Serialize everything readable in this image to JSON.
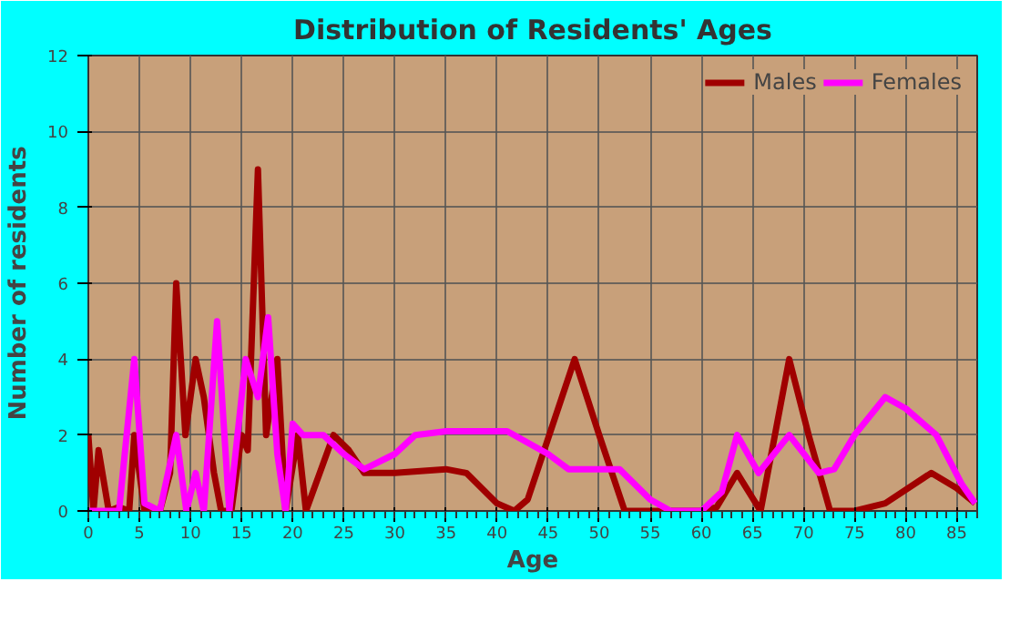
{
  "chart_data": {
    "type": "line",
    "title": "Distribution of Residents' Ages",
    "xlabel": "Age",
    "ylabel": "Number of residents",
    "xlim": [
      0,
      87
    ],
    "xticks": [
      0,
      5,
      10,
      15,
      20,
      25,
      30,
      35,
      40,
      45,
      50,
      55,
      60,
      65,
      70,
      75,
      80,
      85
    ],
    "ylim": [
      0,
      12
    ],
    "yticks": [
      0,
      2,
      4,
      6,
      8,
      10,
      12
    ],
    "grid": true,
    "legend": "top right",
    "line_style": "solid",
    "series": [
      {
        "name": "Males",
        "color": "#a00000",
        "x": [
          0,
          0.5,
          1,
          2,
          3,
          4,
          4.5,
          5.5,
          7,
          8,
          8.6,
          9.5,
          10.5,
          11.3,
          12.3,
          13,
          14,
          15,
          15.6,
          16.6,
          17.4,
          18.5,
          19.3,
          20.5,
          21.3,
          24,
          25.5,
          27,
          30,
          35,
          37,
          40,
          41.7,
          43,
          47.6,
          50,
          52.5,
          55,
          60,
          61.5,
          63.5,
          65.8,
          68.6,
          70.5,
          72.6,
          75,
          78,
          82.5,
          85,
          86.8
        ],
        "values": [
          2,
          0,
          1.6,
          0,
          0.1,
          0,
          2,
          0,
          0,
          1,
          6,
          2,
          4,
          3,
          1,
          0,
          0,
          2,
          1.6,
          9,
          2,
          4,
          0,
          2,
          0,
          2,
          1.6,
          1,
          1,
          1.1,
          1,
          0.2,
          0,
          0.3,
          4,
          2,
          0,
          0,
          0,
          0.1,
          1,
          0,
          4,
          2,
          0,
          0,
          0.2,
          1,
          0.6,
          0.2
        ]
      },
      {
        "name": "Females",
        "color": "#ff00ff",
        "x": [
          0,
          3,
          4.5,
          5.5,
          7,
          8.6,
          9.6,
          10.5,
          11.3,
          12.6,
          13.8,
          15.4,
          16.6,
          17.6,
          18.5,
          19.3,
          20,
          21,
          23,
          25,
          27,
          30,
          32,
          35,
          41,
          45,
          47,
          50,
          52,
          55,
          57,
          60,
          62,
          63.5,
          65.6,
          68.6,
          71.5,
          73,
          75,
          78,
          80,
          83,
          85.5,
          86.8
        ],
        "values": [
          0,
          0,
          4,
          0.2,
          0,
          2,
          0,
          1,
          0,
          5,
          0,
          4,
          3,
          5.1,
          1.5,
          0,
          2.3,
          2,
          2,
          1.5,
          1.1,
          1.5,
          2,
          2.1,
          2.1,
          1.5,
          1.1,
          1.1,
          1.1,
          0.3,
          0,
          0,
          0.5,
          2,
          1,
          2,
          1,
          1.1,
          2,
          3,
          2.7,
          2,
          0.7,
          0.2
        ]
      }
    ]
  }
}
